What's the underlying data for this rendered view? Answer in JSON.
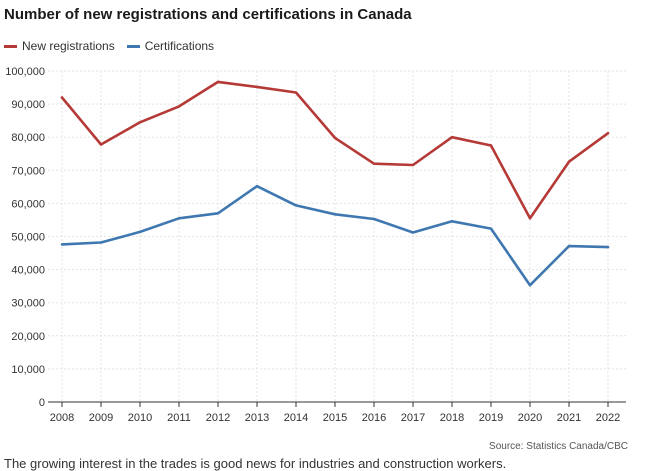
{
  "chart_data": {
    "type": "line",
    "title": "Number of new registrations and certifications in Canada",
    "xlabel": "",
    "ylabel": "",
    "x": [
      "2008",
      "2009",
      "2010",
      "2011",
      "2012",
      "2013",
      "2014",
      "2015",
      "2016",
      "2017",
      "2018",
      "2019",
      "2020",
      "2021",
      "2022"
    ],
    "yticks": [
      "0",
      "10,000",
      "20,000",
      "30,000",
      "40,000",
      "50,000",
      "60,000",
      "70,000",
      "80,000",
      "90,000",
      "100,000"
    ],
    "ylim": [
      0,
      100000
    ],
    "grid": true,
    "legend_position": "top-left",
    "series": [
      {
        "name": "New registrations",
        "color": "#b53a37",
        "values": [
          92000,
          77800,
          84500,
          89300,
          96700,
          95200,
          93500,
          79800,
          72000,
          71600,
          80000,
          77500,
          55500,
          72600,
          81200
        ]
      },
      {
        "name": "Certifications",
        "color": "#3f78b1",
        "values": [
          47600,
          48200,
          51400,
          55500,
          57000,
          65200,
          59400,
          56700,
          55300,
          51200,
          54600,
          52400,
          35300,
          47100,
          46800
        ]
      }
    ],
    "source": "Source: Statistics Canada/CBC"
  },
  "footer_text": "The growing interest in the trades is good news for industries and construction workers."
}
